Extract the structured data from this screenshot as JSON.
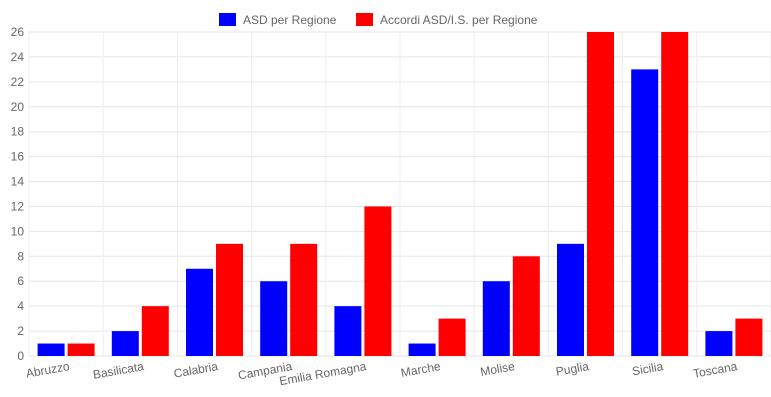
{
  "chart_data": {
    "type": "bar",
    "categories": [
      "Abruzzo",
      "Basilicata",
      "Calabria",
      "Campania",
      "Emilia Romagna",
      "Marche",
      "Molise",
      "Puglia",
      "Sicilia",
      "Toscana"
    ],
    "series": [
      {
        "name": "ASD per Regione",
        "color": "#0000ff",
        "values": [
          1,
          2,
          7,
          6,
          4,
          1,
          6,
          9,
          23,
          2
        ]
      },
      {
        "name": "Accordi ASD/I.S. per Regione",
        "color": "#ff0000",
        "values": [
          1,
          4,
          9,
          9,
          12,
          3,
          8,
          26,
          26,
          3
        ]
      }
    ],
    "ylim": [
      0,
      26
    ],
    "yticks": [
      0,
      2,
      4,
      6,
      8,
      10,
      12,
      14,
      16,
      18,
      20,
      22,
      24,
      26
    ],
    "grid": true,
    "legend": "top-center",
    "title": "",
    "xlabel": "",
    "ylabel": ""
  }
}
